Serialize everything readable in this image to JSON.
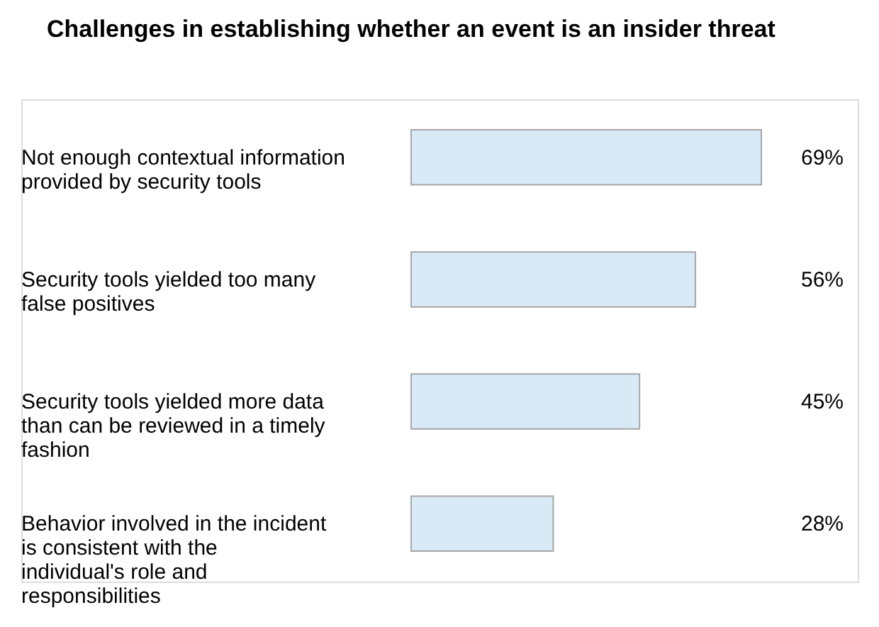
{
  "chart_data": {
    "type": "bar",
    "orientation": "horizontal",
    "title": "Challenges in establishing whether an event is an insider threat",
    "categories": [
      "Not enough contextual information provided by security tools",
      "Security tools yielded too many false positives",
      "Security tools yielded more data than can be reviewed in a timely fashion",
      "Behavior involved in the incident is consistent with the individual's role and responsibilities"
    ],
    "values": [
      69,
      56,
      45,
      28
    ],
    "value_labels": [
      "69%",
      "56%",
      "45%",
      "28%"
    ],
    "color": "#d9eaf7",
    "grid": false
  }
}
